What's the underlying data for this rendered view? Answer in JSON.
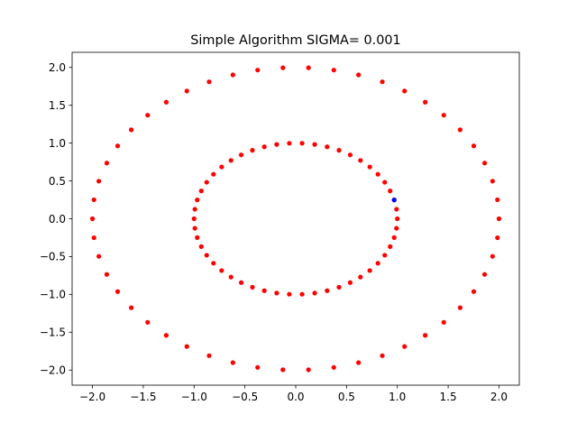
{
  "chart_data": {
    "type": "scatter",
    "title": "Simple Algorithm SIGMA= 0.001",
    "xlabel": "",
    "ylabel": "",
    "xlim": [
      -2.2,
      2.2
    ],
    "ylim": [
      -2.2,
      2.2
    ],
    "x_ticks": [
      -2.0,
      -1.5,
      -1.0,
      -0.5,
      0.0,
      0.5,
      1.0,
      1.5,
      2.0
    ],
    "y_ticks": [
      -2.0,
      -1.5,
      -1.0,
      -0.5,
      0.0,
      0.5,
      1.0,
      1.5,
      2.0
    ],
    "x_tick_labels": [
      "−2.0",
      "−1.5",
      "−1.0",
      "−0.5",
      "0.0",
      "0.5",
      "1.0",
      "1.5",
      "2.0"
    ],
    "y_tick_labels": [
      "−2.0",
      "−1.5",
      "−1.0",
      "−0.5",
      "0.0",
      "0.5",
      "1.0",
      "1.5",
      "2.0"
    ],
    "grid": false,
    "series": [
      {
        "color": "#ff0000",
        "points": [
          [
            2.0,
            0.0
          ],
          [
            1.985,
            0.251
          ],
          [
            1.937,
            0.497
          ],
          [
            1.859,
            0.736
          ],
          [
            1.752,
            0.963
          ],
          [
            1.618,
            1.176
          ],
          [
            1.457,
            1.369
          ],
          [
            1.274,
            1.541
          ],
          [
            1.071,
            1.689
          ],
          [
            0.852,
            1.81
          ],
          [
            0.618,
            1.902
          ],
          [
            0.375,
            1.965
          ],
          [
            0.126,
            1.996
          ],
          [
            -0.126,
            1.996
          ],
          [
            -0.375,
            1.965
          ],
          [
            -0.618,
            1.902
          ],
          [
            -0.852,
            1.81
          ],
          [
            -1.071,
            1.689
          ],
          [
            -1.274,
            1.541
          ],
          [
            -1.457,
            1.369
          ],
          [
            -1.618,
            1.176
          ],
          [
            -1.752,
            0.963
          ],
          [
            -1.859,
            0.736
          ],
          [
            -1.937,
            0.497
          ],
          [
            -1.985,
            0.251
          ],
          [
            -2.0,
            0.0
          ],
          [
            -1.985,
            -0.251
          ],
          [
            -1.937,
            -0.497
          ],
          [
            -1.859,
            -0.736
          ],
          [
            -1.752,
            -0.963
          ],
          [
            -1.618,
            -1.176
          ],
          [
            -1.457,
            -1.369
          ],
          [
            -1.274,
            -1.541
          ],
          [
            -1.071,
            -1.689
          ],
          [
            -0.852,
            -1.81
          ],
          [
            -0.618,
            -1.902
          ],
          [
            -0.375,
            -1.965
          ],
          [
            -0.126,
            -1.996
          ],
          [
            0.126,
            -1.996
          ],
          [
            0.375,
            -1.965
          ],
          [
            0.618,
            -1.902
          ],
          [
            0.852,
            -1.81
          ],
          [
            1.071,
            -1.689
          ],
          [
            1.274,
            -1.541
          ],
          [
            1.457,
            -1.369
          ],
          [
            1.618,
            -1.176
          ],
          [
            1.752,
            -0.963
          ],
          [
            1.859,
            -0.736
          ],
          [
            1.937,
            -0.497
          ],
          [
            1.985,
            -0.251
          ],
          [
            1.0,
            0.0
          ],
          [
            0.992,
            0.126
          ],
          [
            0.969,
            0.249
          ],
          [
            0.929,
            0.368
          ],
          [
            0.876,
            0.482
          ],
          [
            0.809,
            0.588
          ],
          [
            0.729,
            0.685
          ],
          [
            0.637,
            0.771
          ],
          [
            0.536,
            0.844
          ],
          [
            0.426,
            0.905
          ],
          [
            0.309,
            0.951
          ],
          [
            0.187,
            0.982
          ],
          [
            0.063,
            0.998
          ],
          [
            -0.063,
            0.998
          ],
          [
            -0.187,
            0.982
          ],
          [
            -0.309,
            0.951
          ],
          [
            -0.426,
            0.905
          ],
          [
            -0.536,
            0.844
          ],
          [
            -0.637,
            0.771
          ],
          [
            -0.729,
            0.685
          ],
          [
            -0.809,
            0.588
          ],
          [
            -0.876,
            0.482
          ],
          [
            -0.929,
            0.368
          ],
          [
            -0.969,
            0.249
          ],
          [
            -0.992,
            0.126
          ],
          [
            -1.0,
            0.0
          ],
          [
            -0.992,
            -0.126
          ],
          [
            -0.969,
            -0.249
          ],
          [
            -0.929,
            -0.368
          ],
          [
            -0.876,
            -0.482
          ],
          [
            -0.809,
            -0.588
          ],
          [
            -0.729,
            -0.685
          ],
          [
            -0.637,
            -0.771
          ],
          [
            -0.536,
            -0.844
          ],
          [
            -0.426,
            -0.905
          ],
          [
            -0.309,
            -0.951
          ],
          [
            -0.187,
            -0.982
          ],
          [
            -0.063,
            -0.998
          ],
          [
            0.063,
            -0.998
          ],
          [
            0.187,
            -0.982
          ],
          [
            0.309,
            -0.951
          ],
          [
            0.426,
            -0.905
          ],
          [
            0.536,
            -0.844
          ],
          [
            0.637,
            -0.771
          ],
          [
            0.729,
            -0.685
          ],
          [
            0.809,
            -0.588
          ],
          [
            0.876,
            -0.482
          ],
          [
            0.929,
            -0.368
          ],
          [
            0.969,
            -0.249
          ],
          [
            0.992,
            -0.126
          ]
        ]
      },
      {
        "color": "#0000ff",
        "points": [
          [
            0.969,
            0.249
          ]
        ]
      }
    ]
  }
}
